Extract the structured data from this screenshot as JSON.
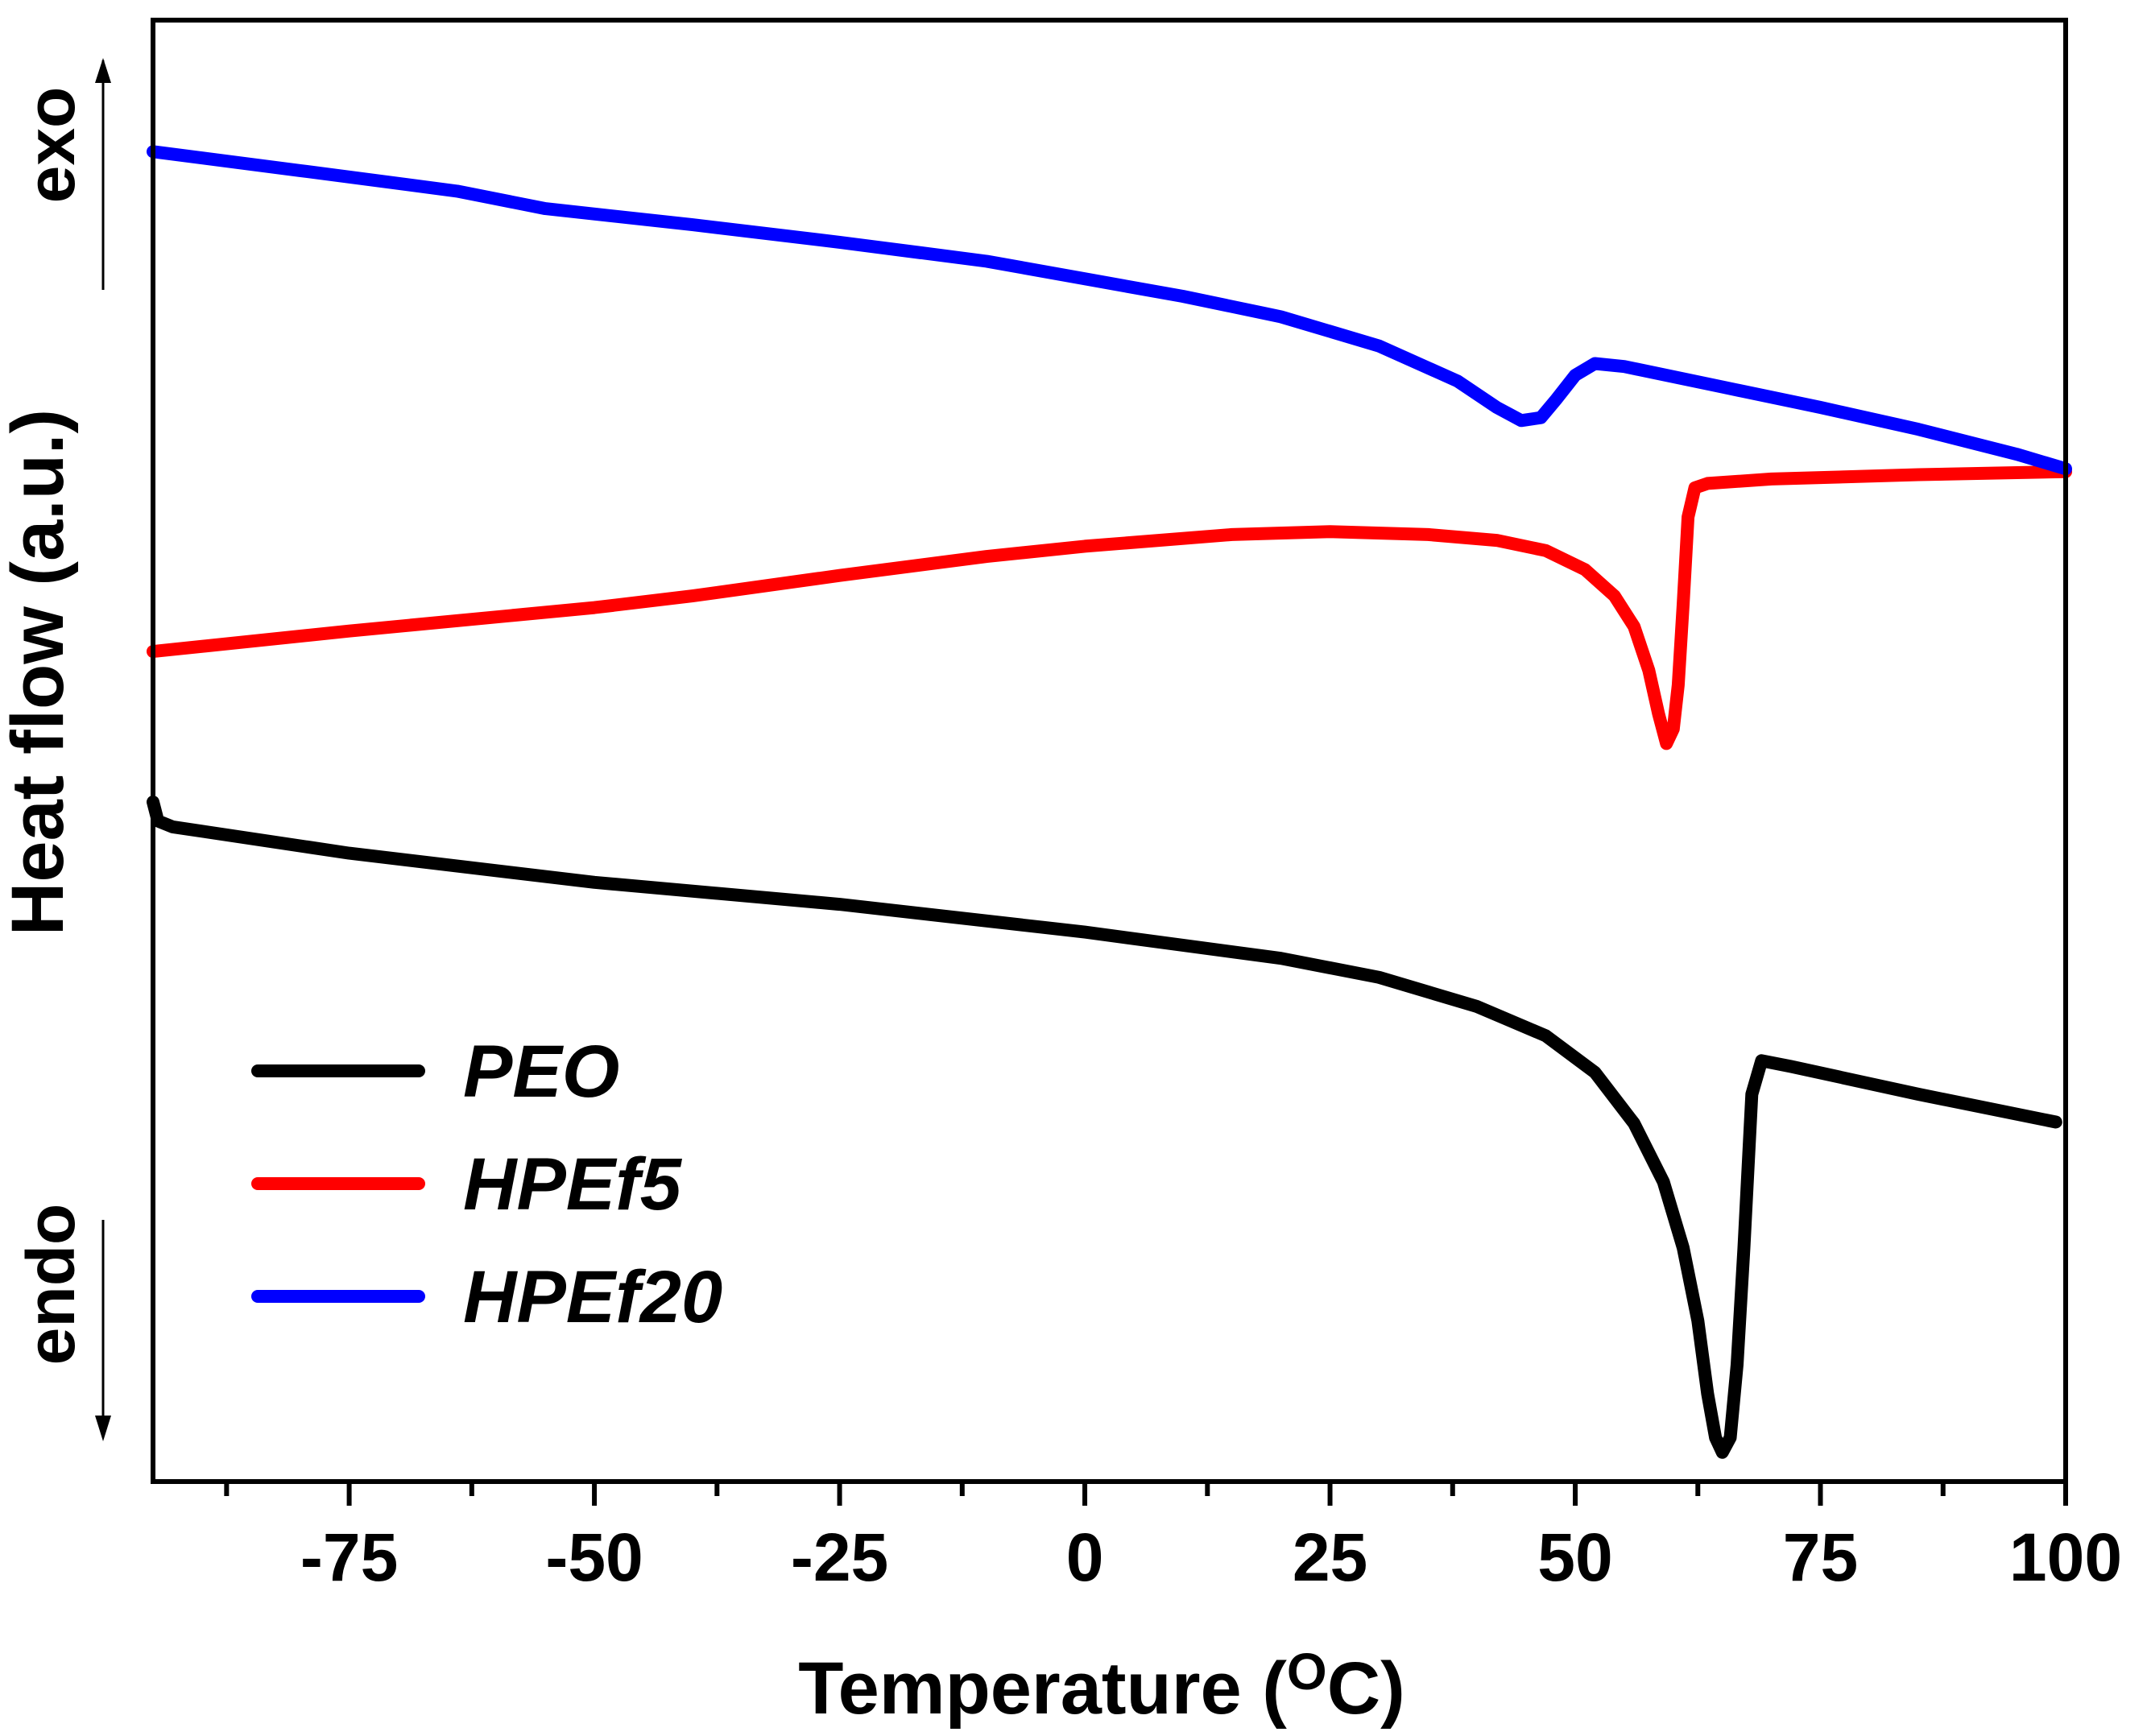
{
  "chart_data": {
    "type": "line",
    "title": "",
    "xlabel": "Temperature (",
    "xlabel_unit_sup": "O",
    "xlabel_unit": "C)",
    "ylabel": "Heat flow (a.u.)",
    "exo_label": "exo",
    "endo_label": "endo",
    "xlim": [
      -95,
      100
    ],
    "ylim": [
      0,
      100
    ],
    "x_ticks": [
      -75,
      -50,
      -25,
      0,
      25,
      50,
      75,
      100
    ],
    "x_tick_labels": [
      "-75",
      "-50",
      "-25",
      "0",
      "25",
      "50",
      "75",
      "100"
    ],
    "legend_position": "bottom-left",
    "grid": false,
    "series": [
      {
        "name": "PEO",
        "color": "#000000",
        "points": [
          [
            -95,
            46.5
          ],
          [
            -94.5,
            45.2
          ],
          [
            -93,
            44.8
          ],
          [
            -75,
            43.0
          ],
          [
            -50,
            41.0
          ],
          [
            -25,
            39.5
          ],
          [
            0,
            37.6
          ],
          [
            20,
            35.8
          ],
          [
            30,
            34.5
          ],
          [
            40,
            32.5
          ],
          [
            47,
            30.5
          ],
          [
            52,
            28.0
          ],
          [
            56,
            24.5
          ],
          [
            59,
            20.5
          ],
          [
            61,
            16.0
          ],
          [
            62.5,
            11.0
          ],
          [
            63.5,
            6.0
          ],
          [
            64.3,
            3.0
          ],
          [
            65,
            2.0
          ],
          [
            65.8,
            3.0
          ],
          [
            66.5,
            8.0
          ],
          [
            67.2,
            16.0
          ],
          [
            68,
            26.5
          ],
          [
            69,
            28.8
          ],
          [
            72,
            28.4
          ],
          [
            85,
            26.5
          ],
          [
            99,
            24.6
          ]
        ]
      },
      {
        "name": "HPEf5",
        "color": "#ff0000",
        "points": [
          [
            -95,
            56.8
          ],
          [
            -75,
            58.2
          ],
          [
            -50,
            59.8
          ],
          [
            -40,
            60.6
          ],
          [
            -25,
            62.0
          ],
          [
            -10,
            63.3
          ],
          [
            0,
            64.0
          ],
          [
            15,
            64.8
          ],
          [
            25,
            65.0
          ],
          [
            35,
            64.8
          ],
          [
            42,
            64.4
          ],
          [
            47,
            63.7
          ],
          [
            51,
            62.4
          ],
          [
            54,
            60.6
          ],
          [
            56,
            58.5
          ],
          [
            57.5,
            55.5
          ],
          [
            58.5,
            52.5
          ],
          [
            59.3,
            50.5
          ],
          [
            60,
            51.5
          ],
          [
            60.5,
            54.5
          ],
          [
            61,
            60.0
          ],
          [
            61.5,
            66.0
          ],
          [
            62.2,
            68.0
          ],
          [
            63.5,
            68.3
          ],
          [
            70,
            68.6
          ],
          [
            85,
            68.9
          ],
          [
            100,
            69.1
          ]
        ]
      },
      {
        "name": "HPEf20",
        "color": "#0000ff",
        "points": [
          [
            -95,
            91.0
          ],
          [
            -80,
            89.7
          ],
          [
            -64,
            88.3
          ],
          [
            -55,
            87.1
          ],
          [
            -40,
            86.0
          ],
          [
            -25,
            84.8
          ],
          [
            -10,
            83.5
          ],
          [
            0,
            82.3
          ],
          [
            10,
            81.1
          ],
          [
            20,
            79.7
          ],
          [
            30,
            77.7
          ],
          [
            38,
            75.3
          ],
          [
            42,
            73.5
          ],
          [
            44.5,
            72.6
          ],
          [
            46.5,
            72.8
          ],
          [
            48,
            74.0
          ],
          [
            50,
            75.7
          ],
          [
            52,
            76.5
          ],
          [
            55,
            76.3
          ],
          [
            65,
            74.9
          ],
          [
            75,
            73.5
          ],
          [
            85,
            72.0
          ],
          [
            95,
            70.3
          ],
          [
            100,
            69.3
          ]
        ]
      }
    ]
  }
}
